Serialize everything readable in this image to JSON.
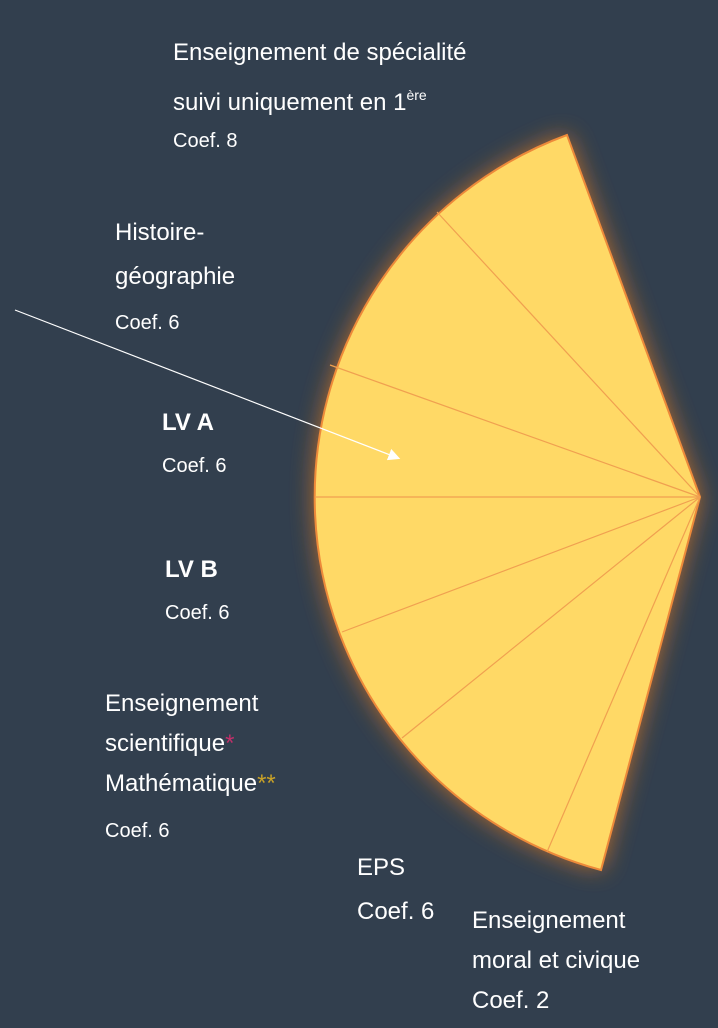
{
  "labels": [
    {
      "lines": [
        "Enseignement de spécialité",
        "suivi uniquement en 1"
      ],
      "sup": "ère",
      "coef": "Coef. 8"
    },
    {
      "lines": [
        "Histoire-",
        "géographie"
      ],
      "coef": "Coef. 6"
    },
    {
      "lines": [
        "LV A"
      ],
      "coef": "Coef. 6"
    },
    {
      "lines": [
        "LV B"
      ],
      "coef": "Coef. 6"
    },
    {
      "lines": [
        "Enseignement",
        "scientifique",
        "Mathématique"
      ],
      "marks": [
        "*",
        "**"
      ],
      "coef": "Coef. 6"
    },
    {
      "lines": [
        "EPS"
      ],
      "coef": "Coef. 6"
    },
    {
      "lines": [
        "Enseignement",
        "moral et civique"
      ],
      "coef": "Coef. 2"
    }
  ]
}
